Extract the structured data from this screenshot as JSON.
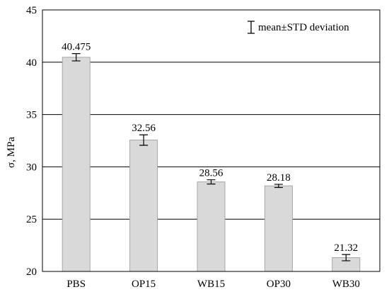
{
  "chart_data": {
    "type": "bar",
    "title": "",
    "xlabel": "",
    "ylabel": "σ, MPa",
    "ylim": [
      20,
      45
    ],
    "yticks": [
      20,
      25,
      30,
      35,
      40,
      45
    ],
    "grid": "horizontal",
    "categories": [
      "PBS",
      "OP15",
      "WB15",
      "OP30",
      "WB30"
    ],
    "values": [
      40.475,
      32.56,
      28.56,
      28.18,
      21.32
    ],
    "value_labels": [
      "40.475",
      "32.56",
      "28.56",
      "28.18",
      "21.32"
    ],
    "errors": [
      0.35,
      0.5,
      0.2,
      0.15,
      0.3
    ],
    "legend": {
      "label": "mean±STD deviation",
      "placement": "top-right"
    },
    "colors": {
      "bar_fill": "#d9d9d9",
      "bar_stroke": "#a6a6a6",
      "grid": "#000000",
      "axis": "#000000"
    }
  }
}
